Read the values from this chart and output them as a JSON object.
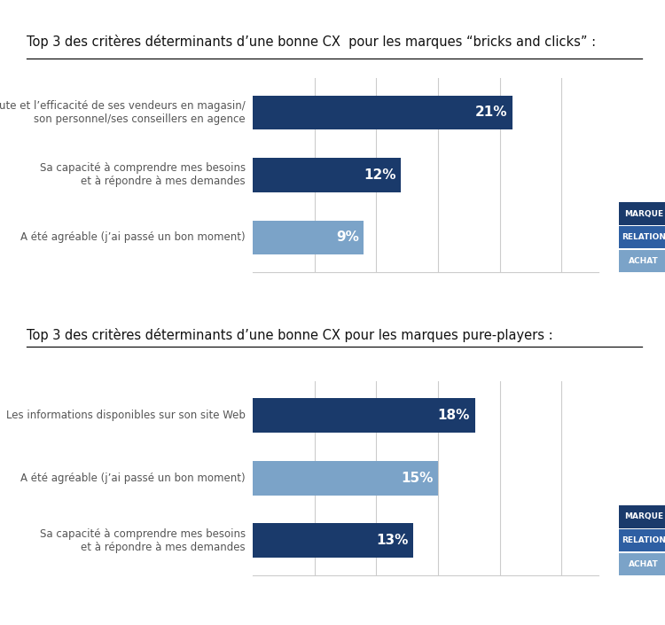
{
  "title1": "Top 3 des critères déterminants d’une bonne CX  pour les marques “bricks and clicks” :",
  "title2": "Top 3 des critères déterminants d’une bonne CX pour les marques pure-players :",
  "chart1": {
    "labels": [
      "L’écoute et l’efficacité de ses vendeurs en magasin/\nson personnel/ses conseillers en agence",
      "Sa capacité à comprendre mes besoins\net à répondre à mes demandes",
      "A été agréable (j’ai passé un bon moment)"
    ],
    "values": [
      21,
      12,
      9
    ],
    "colors": [
      "#1a3a6b",
      "#1a3a6b",
      "#7ba3c8"
    ]
  },
  "chart2": {
    "labels": [
      "Les informations disponibles sur son site Web",
      "A été agréable (j’ai passé un bon moment)",
      "Sa capacité à comprendre mes besoins\net à répondre à mes demandes"
    ],
    "values": [
      18,
      15,
      13
    ],
    "colors": [
      "#1a3a6b",
      "#7ba3c8",
      "#1a3a6b"
    ]
  },
  "legend_colors": [
    "#1a3a6b",
    "#2e5fa3",
    "#7ba3c8"
  ],
  "legend_labels": [
    "MARQUE",
    "RELATION",
    "ACHAT"
  ],
  "bg_color": "#ffffff",
  "bar_height": 0.55,
  "xlim": 28,
  "text_color_inside": "#ffffff",
  "title_fontsize": 10.5,
  "label_fontsize": 8.5,
  "value_fontsize": 11,
  "label_color": "#555555"
}
